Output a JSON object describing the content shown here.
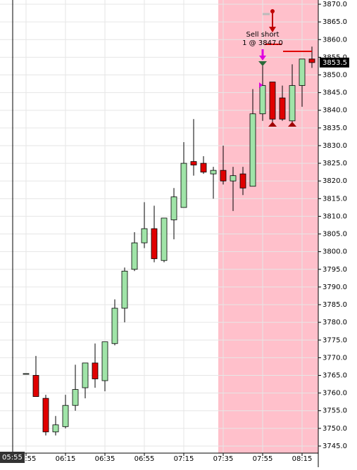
{
  "chart_data": {
    "type": "candlestick",
    "categories": [
      "05:55",
      null,
      null,
      null,
      "06:15",
      null,
      null,
      null,
      "06:35",
      null,
      null,
      null,
      "06:55",
      null,
      null,
      null,
      "07:15",
      null,
      null,
      null,
      "07:35",
      null,
      null,
      null,
      "07:55",
      null,
      null,
      null,
      "08:15",
      null
    ],
    "open": [
      3765.5,
      3765,
      3758.5,
      3749,
      3750.5,
      3756.5,
      3761.5,
      3768.5,
      3763.5,
      3774,
      3784,
      3795,
      3802.5,
      3806.5,
      3797.5,
      3809,
      3812.5,
      3825.5,
      3825,
      3822,
      3823,
      3820,
      3822,
      3818.5,
      3839,
      3848,
      3843.5,
      3837,
      3847,
      3854.5
    ],
    "high": [
      3765.5,
      3770.5,
      3759.5,
      3753.5,
      3759.5,
      3768,
      3768.5,
      3774,
      3774.5,
      3786.5,
      3795.5,
      3805.5,
      3814,
      3813,
      3809.5,
      3818,
      3831,
      3837.5,
      3827,
      3824,
      3830,
      3824,
      3824,
      3846,
      3853,
      3848,
      3847,
      3853,
      3854.5,
      3858
    ],
    "low": [
      3765.5,
      3759,
      3748,
      3748,
      3750,
      3755,
      3758.5,
      3761.5,
      3760.5,
      3773.5,
      3780,
      3794.5,
      3801,
      3797,
      3797,
      3803.5,
      3812.5,
      3821.5,
      3822,
      3815,
      3819,
      3811.5,
      3816,
      3818.5,
      3837,
      3836,
      3837,
      3836,
      3841,
      3852
    ],
    "close": [
      3765.5,
      3759,
      3749,
      3751,
      3756.5,
      3761,
      3768.5,
      3764,
      3774.5,
      3784,
      3794.5,
      3802.5,
      3806.5,
      3798,
      3809.5,
      3815.5,
      3825,
      3824.5,
      3822.5,
      3823,
      3820,
      3821.5,
      3818,
      3839,
      3847,
      3837.5,
      3837.5,
      3847,
      3854.5,
      3853.5
    ],
    "up_color": "#a0e4a8",
    "down_color": "#e00000",
    "ylim": [
      3743.0,
      3871.2
    ],
    "yticks": [
      {
        "value": 3745,
        "label": "3745.0"
      },
      {
        "value": 3750,
        "label": "3750.0"
      },
      {
        "value": 3755,
        "label": "3755.0"
      },
      {
        "value": 3760,
        "label": "3760.0"
      },
      {
        "value": 3765,
        "label": "3765.0"
      },
      {
        "value": 3770,
        "label": "3770.0"
      },
      {
        "value": 3775,
        "label": "3775.0"
      },
      {
        "value": 3780,
        "label": "3780.0"
      },
      {
        "value": 3785,
        "label": "3785.0"
      },
      {
        "value": 3790,
        "label": "3790.0"
      },
      {
        "value": 3795,
        "label": "3795.0"
      },
      {
        "value": 3800,
        "label": "3800.0"
      },
      {
        "value": 3805,
        "label": "3805.0"
      },
      {
        "value": 3810,
        "label": "3810.0"
      },
      {
        "value": 3815,
        "label": "3815.0"
      },
      {
        "value": 3820,
        "label": "3820.0"
      },
      {
        "value": 3825,
        "label": "3825.0"
      },
      {
        "value": 3830,
        "label": "3830.0"
      },
      {
        "value": 3835,
        "label": "3835.0"
      },
      {
        "value": 3840,
        "label": "3840.0"
      },
      {
        "value": 3845,
        "label": "3845.0"
      },
      {
        "value": 3850,
        "label": "3850.0"
      },
      {
        "value": 3855,
        "label": "3855.0"
      },
      {
        "value": 3860,
        "label": "3860.0"
      },
      {
        "value": 3865,
        "label": "3865.0"
      },
      {
        "value": 3870,
        "label": "3870.0"
      }
    ],
    "grid": true,
    "annotation": "Sell short",
    "annotation_detail": "1 @ 3847.0",
    "crosshair_label": "05:55"
  }
}
